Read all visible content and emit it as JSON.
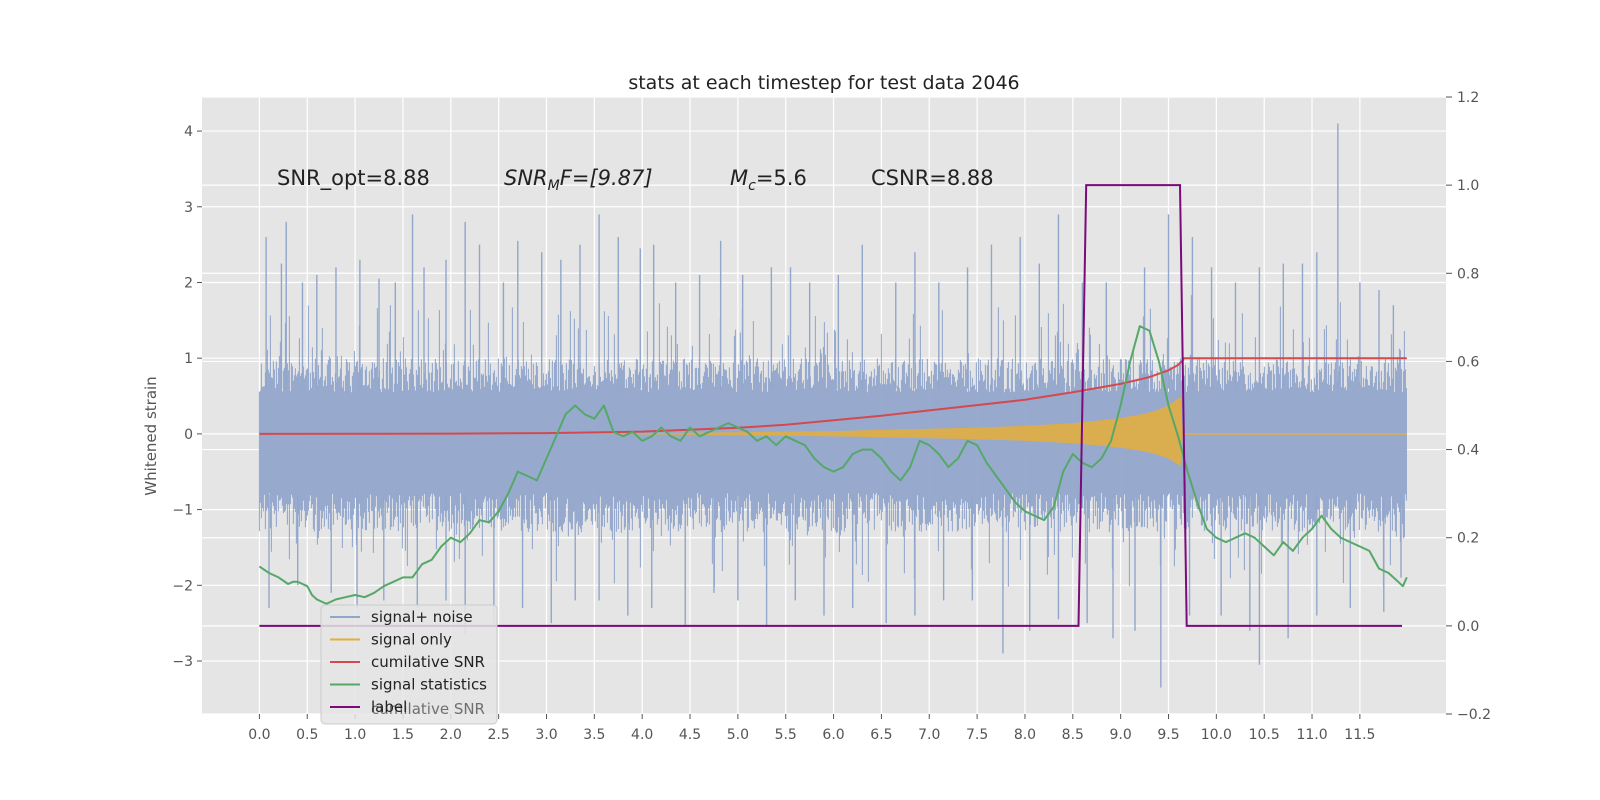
{
  "chart_data": {
    "type": "line",
    "title": "stats at each timestep for test data 2046",
    "ylabel": "Whitened strain",
    "xlim": [
      -0.6,
      12.4
    ],
    "ylim": [
      -3.7,
      4.45
    ],
    "y2lim": [
      -0.2,
      1.2
    ],
    "grid": true,
    "x_ticks": [
      0.0,
      0.5,
      1.0,
      1.5,
      2.0,
      2.5,
      3.0,
      3.5,
      4.0,
      4.5,
      5.0,
      5.5,
      6.0,
      6.5,
      7.0,
      7.5,
      8.0,
      8.5,
      9.0,
      9.5,
      10.0,
      10.5,
      11.0,
      11.5
    ],
    "x_tick_labels": [
      "0.0",
      "0.5",
      "1.0",
      "1.5",
      "2.0",
      "2.5",
      "3.0",
      "3.5",
      "4.0",
      "4.5",
      "5.0",
      "5.5",
      "6.0",
      "6.5",
      "7.0",
      "7.5",
      "8.0",
      "8.5",
      "9.0",
      "9.5",
      "10.0",
      "10.5",
      "11.0",
      "11.5"
    ],
    "y_ticks": [
      -3,
      -2,
      -1,
      0,
      1,
      2,
      3,
      4
    ],
    "y_tick_labels": [
      "−3",
      "−2",
      "−1",
      "0",
      "1",
      "2",
      "3",
      "4"
    ],
    "y2_ticks": [
      -0.2,
      0.0,
      0.2,
      0.4,
      0.6,
      0.8,
      1.0,
      1.2
    ],
    "y2_tick_labels": [
      "−0.2",
      "0.0",
      "0.2",
      "0.4",
      "0.6",
      "0.8",
      "1.0",
      "1.2"
    ],
    "annotations": {
      "snr_opt": "SNR_opt=8.88",
      "snr_mf_main": "SNR",
      "snr_mf_sub": "M",
      "snr_mf_tail": "F=[9.87]",
      "mc_main": "M",
      "mc_sub": "c",
      "mc_tail": "=5.6",
      "csnr": "CSNR=8.88"
    },
    "legend": {
      "placement": "lower-left",
      "entries": [
        "signal+ noise",
        "signal only",
        "cumilative SNR",
        "signal statistics",
        "label"
      ],
      "ghost_text": "cumilative SNR"
    },
    "series": [
      {
        "name": "signal+ noise",
        "axis": "left",
        "color": "#92a6cb",
        "x_start": 0.0,
        "x_end": 11.99,
        "band_upper": 1.0,
        "band_lower": -1.3,
        "spikes": [
          [
            0.07,
            2.6
          ],
          [
            0.23,
            2.25
          ],
          [
            0.28,
            2.8
          ],
          [
            0.45,
            2.0
          ],
          [
            0.6,
            2.1
          ],
          [
            0.8,
            2.2
          ],
          [
            1.05,
            2.3
          ],
          [
            1.25,
            2.05
          ],
          [
            1.42,
            2.0
          ],
          [
            1.6,
            2.9
          ],
          [
            1.72,
            2.2
          ],
          [
            1.95,
            2.3
          ],
          [
            2.15,
            2.8
          ],
          [
            2.3,
            2.5
          ],
          [
            2.55,
            2.0
          ],
          [
            2.7,
            2.55
          ],
          [
            2.95,
            2.4
          ],
          [
            3.15,
            2.3
          ],
          [
            3.35,
            2.5
          ],
          [
            3.55,
            2.9
          ],
          [
            3.75,
            2.6
          ],
          [
            3.98,
            2.45
          ],
          [
            4.12,
            2.5
          ],
          [
            4.35,
            2.0
          ],
          [
            4.6,
            2.1
          ],
          [
            4.82,
            2.55
          ],
          [
            5.05,
            2.1
          ],
          [
            5.35,
            2.2
          ],
          [
            5.55,
            2.2
          ],
          [
            5.75,
            2.0
          ],
          [
            6.05,
            2.1
          ],
          [
            6.3,
            2.5
          ],
          [
            6.65,
            2.0
          ],
          [
            6.85,
            2.4
          ],
          [
            7.1,
            2.0
          ],
          [
            7.4,
            2.2
          ],
          [
            7.65,
            2.5
          ],
          [
            7.95,
            2.6
          ],
          [
            8.15,
            2.25
          ],
          [
            8.35,
            2.9
          ],
          [
            8.6,
            2.0
          ],
          [
            8.85,
            2.0
          ],
          [
            9.25,
            2.2
          ],
          [
            9.5,
            2.9
          ],
          [
            9.75,
            2.6
          ],
          [
            9.95,
            2.2
          ],
          [
            10.2,
            2.0
          ],
          [
            10.45,
            2.2
          ],
          [
            10.7,
            2.25
          ],
          [
            10.9,
            2.25
          ],
          [
            11.05,
            2.4
          ],
          [
            11.27,
            4.1
          ],
          [
            11.5,
            2.0
          ],
          [
            11.7,
            1.9
          ],
          [
            11.85,
            1.7
          ]
        ],
        "dips": [
          [
            0.1,
            -2.3
          ],
          [
            0.4,
            -2.0
          ],
          [
            0.75,
            -2.1
          ],
          [
            1.02,
            -2.3
          ],
          [
            1.3,
            -2.2
          ],
          [
            1.65,
            -2.3
          ],
          [
            1.95,
            -2.2
          ],
          [
            2.15,
            -2.65
          ],
          [
            2.45,
            -2.5
          ],
          [
            2.75,
            -2.3
          ],
          [
            3.05,
            -2.5
          ],
          [
            3.3,
            -2.2
          ],
          [
            3.55,
            -2.2
          ],
          [
            3.85,
            -2.4
          ],
          [
            4.1,
            -2.3
          ],
          [
            4.45,
            -2.55
          ],
          [
            4.75,
            -2.1
          ],
          [
            5.0,
            -2.2
          ],
          [
            5.3,
            -2.55
          ],
          [
            5.6,
            -2.2
          ],
          [
            5.9,
            -2.4
          ],
          [
            6.2,
            -2.3
          ],
          [
            6.55,
            -2.5
          ],
          [
            6.85,
            -2.4
          ],
          [
            7.15,
            -2.2
          ],
          [
            7.45,
            -2.2
          ],
          [
            7.77,
            -2.9
          ],
          [
            8.05,
            -2.6
          ],
          [
            8.35,
            -2.45
          ],
          [
            8.65,
            -2.5
          ],
          [
            8.92,
            -2.7
          ],
          [
            9.15,
            -2.6
          ],
          [
            9.42,
            -3.35
          ],
          [
            9.72,
            -2.4
          ],
          [
            10.05,
            -2.4
          ],
          [
            10.35,
            -2.6
          ],
          [
            10.45,
            -3.05
          ],
          [
            10.75,
            -2.7
          ],
          [
            11.05,
            -2.4
          ],
          [
            11.4,
            -2.3
          ],
          [
            11.75,
            -2.35
          ],
          [
            11.93,
            -1.9
          ]
        ]
      },
      {
        "name": "signal only",
        "axis": "left",
        "color": "#e5ae38",
        "envelope_points": [
          [
            3.3,
            0.0
          ],
          [
            4.0,
            0.01
          ],
          [
            5.0,
            0.03
          ],
          [
            6.0,
            0.05
          ],
          [
            6.5,
            0.07
          ],
          [
            7.0,
            0.09
          ],
          [
            7.5,
            0.11
          ],
          [
            8.0,
            0.14
          ],
          [
            8.5,
            0.19
          ],
          [
            8.8,
            0.24
          ],
          [
            9.0,
            0.28
          ],
          [
            9.2,
            0.34
          ],
          [
            9.35,
            0.4
          ],
          [
            9.5,
            0.5
          ],
          [
            9.58,
            0.6
          ],
          [
            9.63,
            0.65
          ],
          [
            9.65,
            0.0
          ]
        ],
        "tail_x_end": 11.99
      },
      {
        "name": "cumilative SNR",
        "axis": "left",
        "color": "#d24a4f",
        "points": [
          [
            0.0,
            0.0
          ],
          [
            1.0,
            0.001
          ],
          [
            2.0,
            0.004
          ],
          [
            3.0,
            0.01
          ],
          [
            4.0,
            0.03
          ],
          [
            5.0,
            0.08
          ],
          [
            5.5,
            0.12
          ],
          [
            6.0,
            0.18
          ],
          [
            6.5,
            0.24
          ],
          [
            7.0,
            0.31
          ],
          [
            7.5,
            0.38
          ],
          [
            8.0,
            0.45
          ],
          [
            8.5,
            0.55
          ],
          [
            9.0,
            0.66
          ],
          [
            9.3,
            0.75
          ],
          [
            9.5,
            0.84
          ],
          [
            9.6,
            0.91
          ],
          [
            9.65,
            0.97
          ],
          [
            9.66,
            1.0
          ],
          [
            11.99,
            1.0
          ]
        ]
      },
      {
        "name": "signal statistics",
        "axis": "right",
        "color": "#55a868",
        "points": [
          [
            0.0,
            0.135
          ],
          [
            0.1,
            0.12
          ],
          [
            0.2,
            0.11
          ],
          [
            0.3,
            0.095
          ],
          [
            0.35,
            0.1
          ],
          [
            0.4,
            0.1
          ],
          [
            0.5,
            0.09
          ],
          [
            0.55,
            0.07
          ],
          [
            0.6,
            0.06
          ],
          [
            0.65,
            0.055
          ],
          [
            0.7,
            0.05
          ],
          [
            0.8,
            0.06
          ],
          [
            0.9,
            0.065
          ],
          [
            1.0,
            0.07
          ],
          [
            1.1,
            0.065
          ],
          [
            1.2,
            0.075
          ],
          [
            1.3,
            0.09
          ],
          [
            1.4,
            0.1
          ],
          [
            1.5,
            0.11
          ],
          [
            1.6,
            0.11
          ],
          [
            1.7,
            0.14
          ],
          [
            1.8,
            0.15
          ],
          [
            1.9,
            0.18
          ],
          [
            2.0,
            0.2
          ],
          [
            2.1,
            0.19
          ],
          [
            2.2,
            0.21
          ],
          [
            2.3,
            0.24
          ],
          [
            2.4,
            0.235
          ],
          [
            2.5,
            0.26
          ],
          [
            2.6,
            0.3
          ],
          [
            2.7,
            0.35
          ],
          [
            2.8,
            0.34
          ],
          [
            2.9,
            0.33
          ],
          [
            3.0,
            0.38
          ],
          [
            3.1,
            0.43
          ],
          [
            3.2,
            0.48
          ],
          [
            3.3,
            0.5
          ],
          [
            3.4,
            0.48
          ],
          [
            3.5,
            0.47
          ],
          [
            3.6,
            0.5
          ],
          [
            3.7,
            0.44
          ],
          [
            3.8,
            0.43
          ],
          [
            3.9,
            0.44
          ],
          [
            4.0,
            0.42
          ],
          [
            4.1,
            0.43
          ],
          [
            4.2,
            0.45
          ],
          [
            4.3,
            0.43
          ],
          [
            4.4,
            0.42
          ],
          [
            4.5,
            0.45
          ],
          [
            4.6,
            0.43
          ],
          [
            4.7,
            0.44
          ],
          [
            4.8,
            0.45
          ],
          [
            4.9,
            0.46
          ],
          [
            5.0,
            0.45
          ],
          [
            5.1,
            0.44
          ],
          [
            5.2,
            0.42
          ],
          [
            5.3,
            0.43
          ],
          [
            5.4,
            0.41
          ],
          [
            5.5,
            0.43
          ],
          [
            5.6,
            0.42
          ],
          [
            5.7,
            0.41
          ],
          [
            5.8,
            0.38
          ],
          [
            5.9,
            0.36
          ],
          [
            6.0,
            0.35
          ],
          [
            6.1,
            0.36
          ],
          [
            6.2,
            0.39
          ],
          [
            6.3,
            0.4
          ],
          [
            6.4,
            0.4
          ],
          [
            6.5,
            0.38
          ],
          [
            6.6,
            0.35
          ],
          [
            6.7,
            0.33
          ],
          [
            6.8,
            0.36
          ],
          [
            6.9,
            0.42
          ],
          [
            7.0,
            0.41
          ],
          [
            7.1,
            0.39
          ],
          [
            7.2,
            0.36
          ],
          [
            7.3,
            0.38
          ],
          [
            7.4,
            0.42
          ],
          [
            7.5,
            0.41
          ],
          [
            7.6,
            0.37
          ],
          [
            7.7,
            0.34
          ],
          [
            7.8,
            0.31
          ],
          [
            7.9,
            0.28
          ],
          [
            8.0,
            0.26
          ],
          [
            8.1,
            0.25
          ],
          [
            8.2,
            0.24
          ],
          [
            8.3,
            0.27
          ],
          [
            8.4,
            0.35
          ],
          [
            8.5,
            0.39
          ],
          [
            8.6,
            0.37
          ],
          [
            8.7,
            0.36
          ],
          [
            8.8,
            0.38
          ],
          [
            8.9,
            0.42
          ],
          [
            9.0,
            0.5
          ],
          [
            9.1,
            0.6
          ],
          [
            9.2,
            0.68
          ],
          [
            9.3,
            0.67
          ],
          [
            9.4,
            0.6
          ],
          [
            9.5,
            0.5
          ],
          [
            9.6,
            0.43
          ],
          [
            9.7,
            0.35
          ],
          [
            9.8,
            0.28
          ],
          [
            9.9,
            0.22
          ],
          [
            10.0,
            0.2
          ],
          [
            10.1,
            0.19
          ],
          [
            10.2,
            0.2
          ],
          [
            10.3,
            0.21
          ],
          [
            10.4,
            0.2
          ],
          [
            10.5,
            0.18
          ],
          [
            10.6,
            0.16
          ],
          [
            10.7,
            0.19
          ],
          [
            10.8,
            0.17
          ],
          [
            10.9,
            0.2
          ],
          [
            11.0,
            0.22
          ],
          [
            11.1,
            0.25
          ],
          [
            11.2,
            0.22
          ],
          [
            11.3,
            0.2
          ],
          [
            11.4,
            0.19
          ],
          [
            11.5,
            0.18
          ],
          [
            11.6,
            0.17
          ],
          [
            11.7,
            0.13
          ],
          [
            11.8,
            0.12
          ],
          [
            11.9,
            0.1
          ],
          [
            11.95,
            0.09
          ],
          [
            11.99,
            0.11
          ]
        ]
      },
      {
        "name": "label",
        "axis": "right",
        "color": "#7b0a7b",
        "points": [
          [
            0.0,
            0.0
          ],
          [
            8.56,
            0.0
          ],
          [
            8.64,
            1.0
          ],
          [
            9.62,
            1.0
          ],
          [
            9.69,
            0.0
          ],
          [
            11.94,
            0.0
          ]
        ]
      }
    ]
  }
}
